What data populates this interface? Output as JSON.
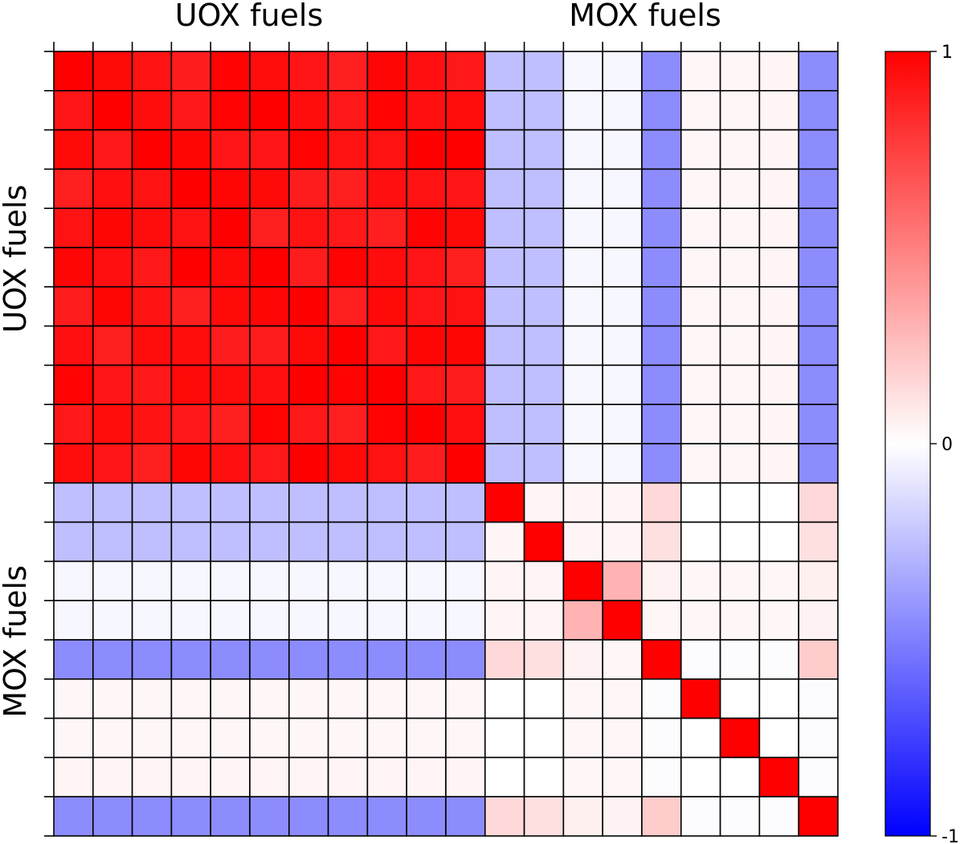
{
  "chart_data": {
    "type": "heatmap",
    "group_labels": {
      "top": [
        "UOX fuels",
        "MOX fuels"
      ],
      "left": [
        "UOX fuels",
        "MOX fuels"
      ]
    },
    "group_sizes": [
      11,
      9
    ],
    "colormap": {
      "name": "bwr",
      "min": -1,
      "max": 1,
      "low_color": "#0000ff",
      "mid_color": "#ffffff",
      "high_color": "#ff0000"
    },
    "colorbar": {
      "position": "right",
      "ticks": [
        1,
        0,
        -1
      ],
      "tick_labels": [
        "1",
        "0",
        "-1"
      ]
    },
    "uox_uox_range": [
      0.88,
      1.0
    ],
    "uox_mox_row": [
      -0.25,
      -0.25,
      -0.03,
      -0.03,
      -0.45,
      0.03,
      0.03,
      0.04,
      -0.45
    ],
    "mox_mox": [
      [
        1.0,
        0.04,
        0.04,
        0.04,
        0.15,
        0.0,
        0.0,
        0.0,
        0.15
      ],
      [
        0.04,
        1.0,
        0.04,
        0.04,
        0.12,
        0.0,
        0.0,
        0.0,
        0.12
      ],
      [
        0.04,
        0.04,
        1.0,
        0.3,
        0.05,
        0.03,
        0.03,
        0.03,
        0.06
      ],
      [
        0.04,
        0.04,
        0.3,
        1.0,
        0.03,
        0.03,
        0.03,
        0.03,
        0.05
      ],
      [
        0.15,
        0.12,
        0.05,
        0.03,
        1.0,
        -0.01,
        -0.01,
        -0.01,
        0.2
      ],
      [
        0.0,
        0.0,
        0.03,
        0.03,
        -0.01,
        1.0,
        0.0,
        0.0,
        -0.01
      ],
      [
        0.0,
        0.0,
        0.03,
        0.03,
        -0.01,
        0.0,
        1.0,
        0.0,
        -0.01
      ],
      [
        0.0,
        0.0,
        0.03,
        0.03,
        -0.01,
        0.0,
        0.0,
        1.0,
        -0.01
      ],
      [
        0.15,
        0.12,
        0.06,
        0.05,
        0.2,
        -0.01,
        -0.01,
        -0.01,
        1.0
      ]
    ]
  }
}
